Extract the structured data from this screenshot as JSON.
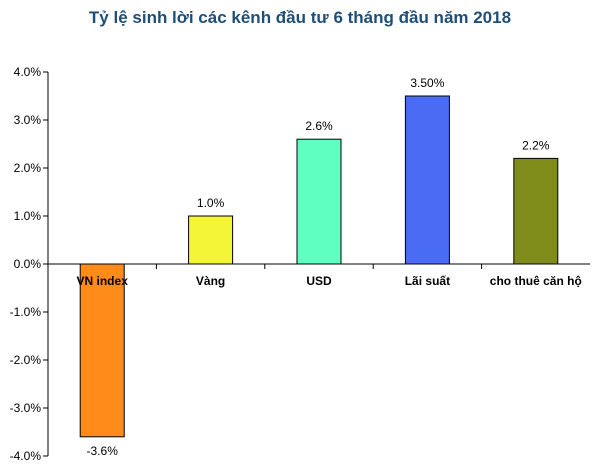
{
  "chart_data": {
    "type": "bar",
    "title": "Tỷ lệ sinh lời các kênh đầu tư 6 tháng đầu năm 2018",
    "categories": [
      "VN index",
      "Vàng",
      "USD",
      "Lãi suất",
      "cho thuê căn hộ"
    ],
    "values": [
      -3.6,
      1.0,
      2.6,
      3.5,
      2.2
    ],
    "data_labels": [
      "-3.6%",
      "1.0%",
      "2.6%",
      "3.50%",
      "2.2%"
    ],
    "colors": [
      "#ff8c1a",
      "#f5f538",
      "#5fffc2",
      "#4a6cf5",
      "#7f8c1a"
    ],
    "ylim": [
      -4.0,
      4.0
    ],
    "yticks": [
      4.0,
      3.0,
      2.0,
      1.0,
      0.0,
      -1.0,
      -2.0,
      -3.0,
      -4.0
    ],
    "ytick_labels": [
      "4.0%",
      "3.0%",
      "2.0%",
      "1.0%",
      "0.0%",
      "-1.0%",
      "-2.0%",
      "-3.0%",
      "-4.0%"
    ],
    "grid": false,
    "legend": false,
    "xlabel": "",
    "ylabel": ""
  }
}
